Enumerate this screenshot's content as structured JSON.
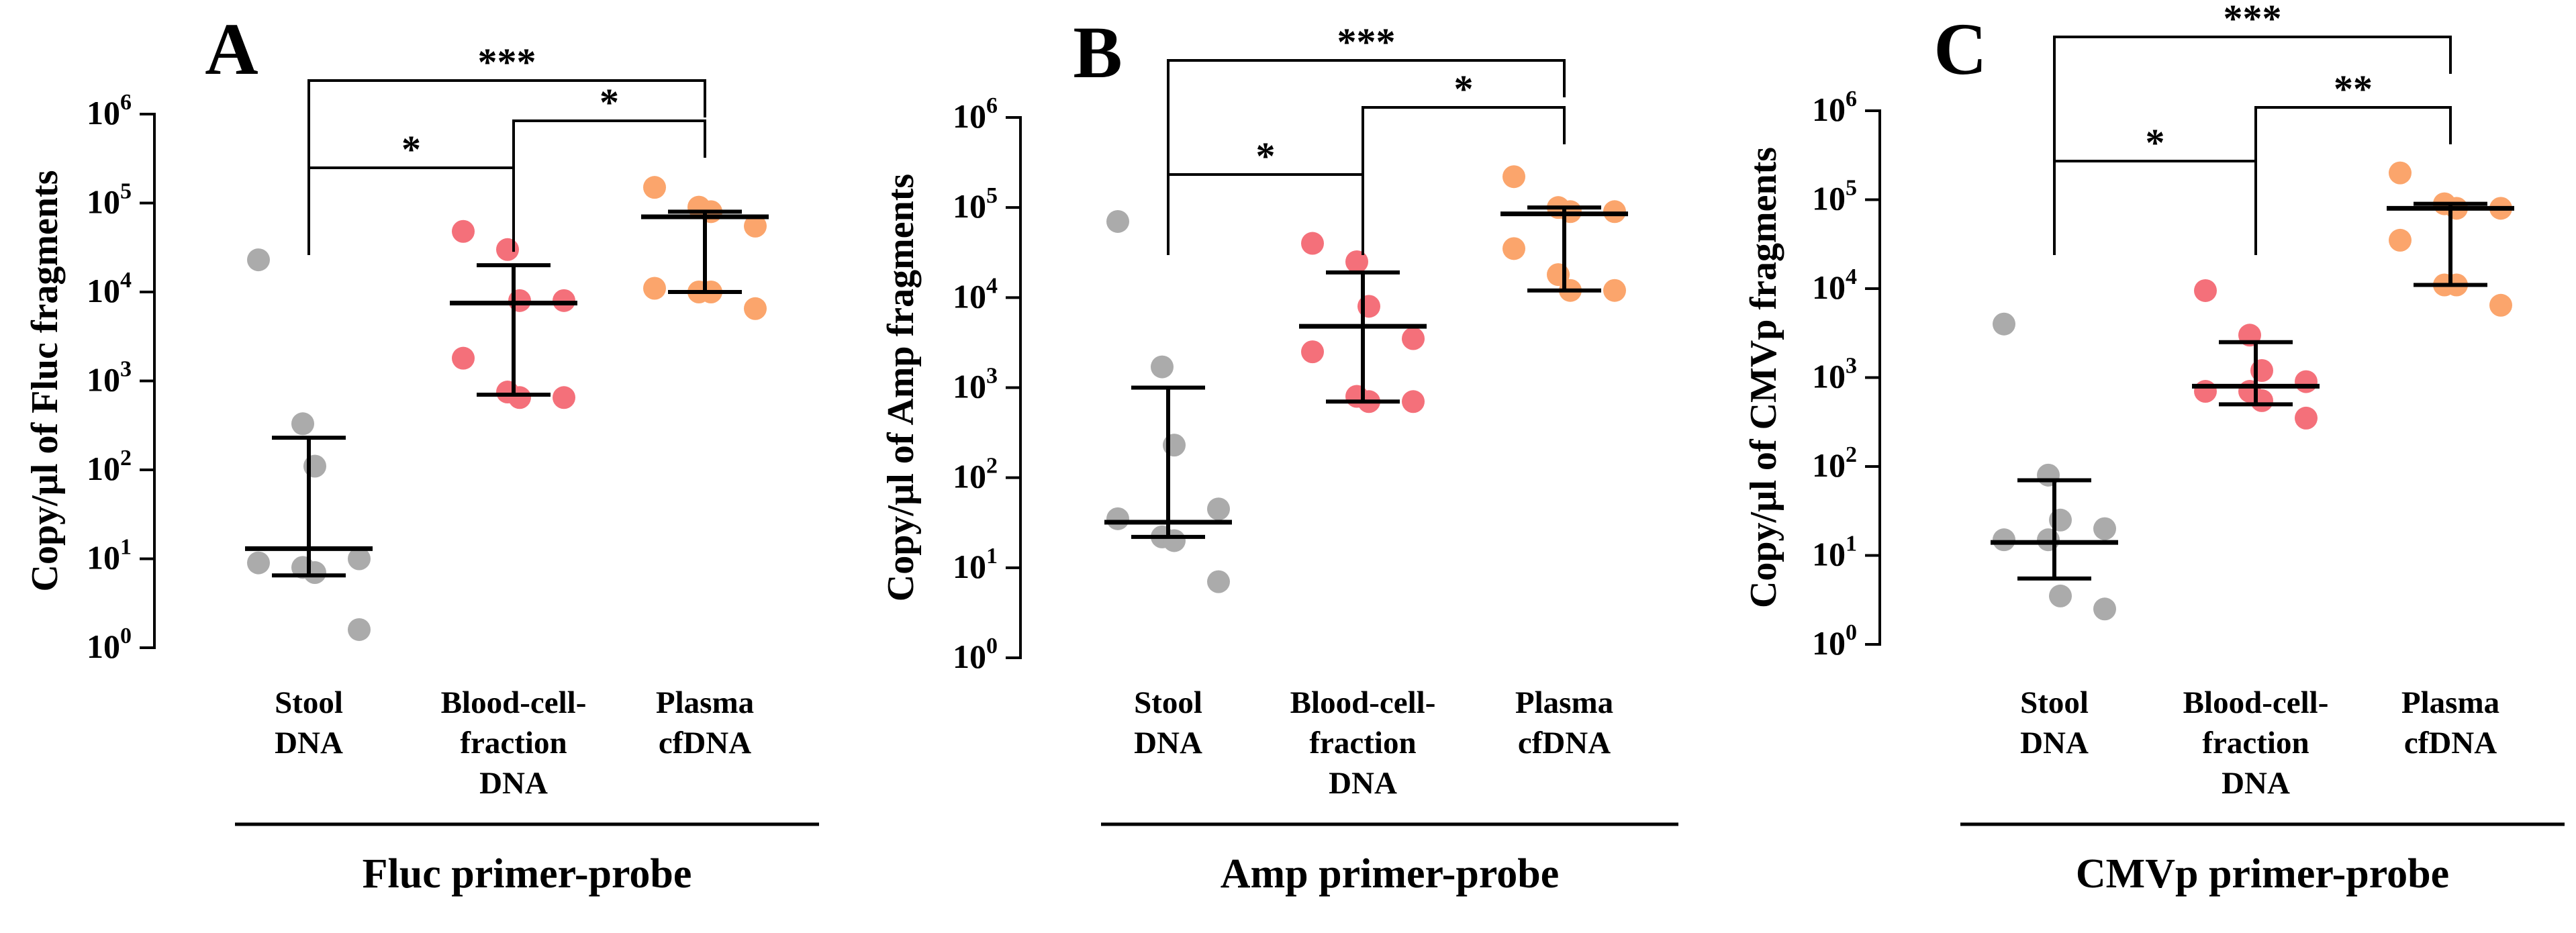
{
  "colors": {
    "stool": "#ababab",
    "blood": "#f4707a",
    "plasma": "#fba56c",
    "ink": "#000000"
  },
  "chart_data": [
    {
      "type": "scatter",
      "panel_letter": "A",
      "title": "",
      "ylabel": "Copy/µl of Fluc fragments",
      "xlabel": "Fluc primer-probe",
      "yscale": "log",
      "ylim": [
        1,
        1000000
      ],
      "y_ticks": [
        1,
        10,
        100,
        1000,
        10000,
        100000,
        1000000
      ],
      "tick_base": "10",
      "tick_exponents": [
        "0",
        "1",
        "2",
        "3",
        "4",
        "5",
        "6"
      ],
      "grid": false,
      "categories": [
        {
          "lines": [
            "Stool",
            "DNA"
          ]
        },
        {
          "lines": [
            "Blood-cell-",
            "fraction",
            "DNA"
          ]
        },
        {
          "lines": [
            "Plasma",
            "cfDNA"
          ]
        }
      ],
      "series": [
        {
          "category": 0,
          "color_key": "stool",
          "values": [
            23000,
            330,
            110,
            10,
            9,
            8,
            7,
            1.6
          ],
          "median": 13,
          "range": [
            6.5,
            230
          ]
        },
        {
          "category": 1,
          "color_key": "blood",
          "values": [
            48000,
            30000,
            8000,
            8000,
            1800,
            750,
            650,
            650
          ],
          "median": 7500,
          "range": [
            700,
            20000
          ]
        },
        {
          "category": 2,
          "color_key": "plasma",
          "values": [
            150000,
            90000,
            80000,
            55000,
            11000,
            10000,
            10000,
            6500
          ],
          "median": 70000,
          "range": [
            10000,
            80000
          ]
        }
      ],
      "comparisons": [
        {
          "from": 0,
          "to": 1,
          "label": "*"
        },
        {
          "from": 1,
          "to": 2,
          "label": "*"
        },
        {
          "from": 0,
          "to": 2,
          "label": "***"
        }
      ]
    },
    {
      "type": "scatter",
      "panel_letter": "B",
      "title": "",
      "ylabel": "Copy/µl of Amp fragments",
      "xlabel": "Amp primer-probe",
      "yscale": "log",
      "ylim": [
        1,
        1000000
      ],
      "y_ticks": [
        1,
        10,
        100,
        1000,
        10000,
        100000,
        1000000
      ],
      "tick_base": "10",
      "tick_exponents": [
        "0",
        "1",
        "2",
        "3",
        "4",
        "5",
        "6"
      ],
      "grid": false,
      "categories": [
        {
          "lines": [
            "Stool",
            "DNA"
          ]
        },
        {
          "lines": [
            "Blood-cell-",
            "fraction",
            "DNA"
          ]
        },
        {
          "lines": [
            "Plasma",
            "cfDNA"
          ]
        }
      ],
      "series": [
        {
          "category": 0,
          "color_key": "stool",
          "values": [
            70000,
            1700,
            230,
            45,
            35,
            22,
            20,
            7
          ],
          "median": 32,
          "range": [
            22,
            1000
          ]
        },
        {
          "category": 1,
          "color_key": "blood",
          "values": [
            40000,
            25000,
            8000,
            3500,
            2500,
            800,
            700,
            700
          ],
          "median": 4800,
          "range": [
            700,
            19000
          ]
        },
        {
          "category": 2,
          "color_key": "plasma",
          "values": [
            220000,
            100000,
            90000,
            90000,
            35000,
            18000,
            12000,
            12000
          ],
          "median": 85000,
          "range": [
            12000,
            100000
          ]
        }
      ],
      "comparisons": [
        {
          "from": 0,
          "to": 1,
          "label": "*"
        },
        {
          "from": 1,
          "to": 2,
          "label": "*"
        },
        {
          "from": 0,
          "to": 2,
          "label": "***"
        }
      ]
    },
    {
      "type": "scatter",
      "panel_letter": "C",
      "title": "",
      "ylabel": "Copy/µl of CMVp fragments",
      "xlabel": "CMVp primer-probe",
      "yscale": "log",
      "ylim": [
        1,
        1000000
      ],
      "y_ticks": [
        1,
        10,
        100,
        1000,
        10000,
        100000,
        1000000
      ],
      "tick_base": "10",
      "tick_exponents": [
        "0",
        "1",
        "2",
        "3",
        "4",
        "5",
        "6"
      ],
      "grid": false,
      "categories": [
        {
          "lines": [
            "Stool",
            "DNA"
          ]
        },
        {
          "lines": [
            "Blood-cell-",
            "fraction",
            "DNA"
          ]
        },
        {
          "lines": [
            "Plasma",
            "cfDNA"
          ]
        }
      ],
      "series": [
        {
          "category": 0,
          "color_key": "stool",
          "values": [
            4000,
            80,
            25,
            20,
            15,
            15,
            3.5,
            2.5
          ],
          "median": 14,
          "range": [
            5.5,
            70
          ]
        },
        {
          "category": 1,
          "color_key": "blood",
          "values": [
            9500,
            3000,
            1200,
            900,
            700,
            700,
            550,
            350
          ],
          "median": 800,
          "range": [
            500,
            2500
          ]
        },
        {
          "category": 2,
          "color_key": "plasma",
          "values": [
            200000,
            90000,
            80000,
            80000,
            35000,
            11000,
            11000,
            6500
          ],
          "median": 80000,
          "range": [
            11000,
            90000
          ]
        }
      ],
      "comparisons": [
        {
          "from": 0,
          "to": 1,
          "label": "*"
        },
        {
          "from": 1,
          "to": 2,
          "label": "**"
        },
        {
          "from": 0,
          "to": 2,
          "label": "***"
        }
      ]
    }
  ]
}
